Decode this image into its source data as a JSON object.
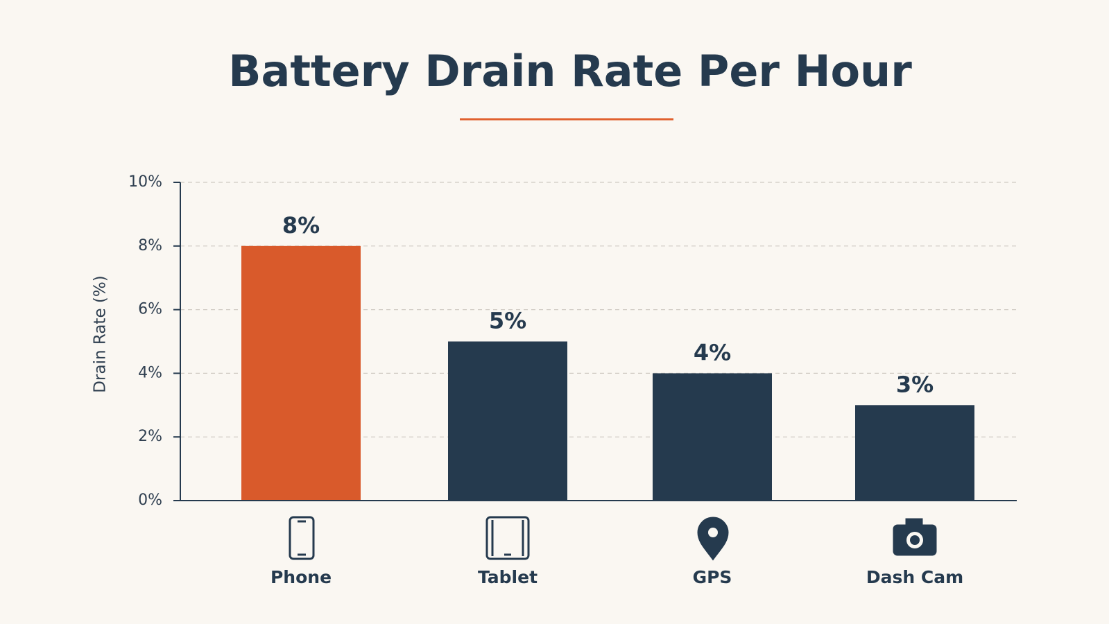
{
  "chart_data": {
    "type": "bar",
    "title": "Battery Drain Rate Per Hour",
    "y_label": "Drain Rate (%)",
    "categories": [
      "Phone",
      "Tablet",
      "GPS",
      "Dash Cam"
    ],
    "values": [
      8,
      5,
      4,
      3
    ],
    "value_labels": [
      "8%",
      "5%",
      "4%",
      "3%"
    ],
    "colors": [
      "#d95a2b",
      "#253a4e",
      "#253a4e",
      "#253a4e"
    ],
    "ylim": [
      0,
      10
    ],
    "yticks": [
      {
        "value": 0,
        "label": "0%"
      },
      {
        "value": 2,
        "label": "2%"
      },
      {
        "value": 4,
        "label": "4%"
      },
      {
        "value": 6,
        "label": "6%"
      },
      {
        "value": 8,
        "label": "8%"
      },
      {
        "value": 10,
        "label": "10%"
      }
    ],
    "grid": true
  }
}
